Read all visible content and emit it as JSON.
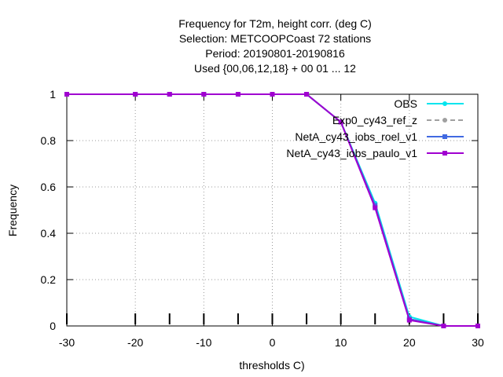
{
  "chart_data": {
    "type": "line",
    "title_lines": [
      "Frequency  for T2m, height corr. (deg C)",
      "Selection: METCOOPCoast     72 stations",
      "Period: 20190801-20190816",
      "Used {00,06,12,18} + 00 01 ... 12"
    ],
    "xlabel": "thresholds C)",
    "ylabel": "Frequency",
    "xlim": [
      -30,
      30
    ],
    "ylim": [
      0,
      1
    ],
    "xticks": [
      -30,
      -20,
      -10,
      0,
      10,
      20,
      30
    ],
    "yticks": [
      0,
      0.2,
      0.4,
      0.6,
      0.8,
      1
    ],
    "minor_xticks": [
      -30,
      -20,
      -15,
      -10,
      -5,
      0,
      5,
      10,
      15,
      20,
      25,
      30
    ],
    "grid": true,
    "legend_position": "top-right",
    "x": [
      -30,
      -20,
      -15,
      -10,
      -5,
      0,
      5,
      10,
      15,
      20,
      25,
      30
    ],
    "series": [
      {
        "name": "OBS",
        "color": "#00e5ee",
        "marker": "circle",
        "values": [
          1,
          1,
          1,
          1,
          1,
          1,
          1,
          0.88,
          0.53,
          0.04,
          0,
          0
        ]
      },
      {
        "name": "Exp0_cy43_ref_z",
        "color": "#a0a0a0",
        "marker": "circle",
        "dashed": true,
        "values": [
          1,
          1,
          1,
          1,
          1,
          1,
          1,
          0.88,
          0.52,
          0.03,
          0,
          0
        ]
      },
      {
        "name": "NetA_cy43_iobs_roel_v1",
        "color": "#4169e1",
        "marker": "square",
        "values": [
          1,
          1,
          1,
          1,
          1,
          1,
          1,
          0.88,
          0.52,
          0.03,
          0,
          0
        ]
      },
      {
        "name": "NetA_cy43_iobs_paulo_v1",
        "color": "#a000d0",
        "marker": "square",
        "values": [
          1,
          1,
          1,
          1,
          1,
          1,
          1,
          0.88,
          0.51,
          0.025,
          0,
          0
        ]
      }
    ]
  }
}
